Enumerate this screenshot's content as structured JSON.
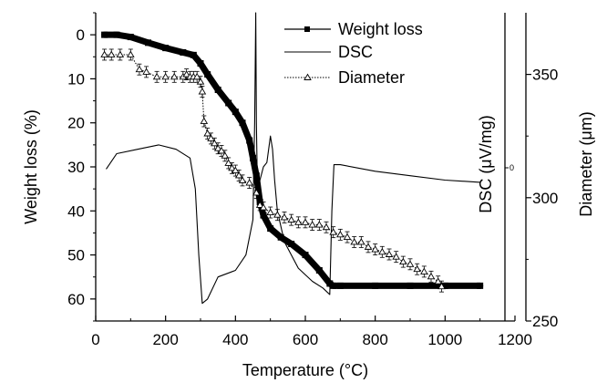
{
  "chart_data": {
    "type": "line",
    "title": "",
    "xlabel": "Temperature (°C)",
    "ylabel_left": "Weight loss (%)",
    "ylabel_dsc": "DSC (μV/mg)",
    "ylabel_right": "Diameter (μm)",
    "xlim": [
      0,
      1200
    ],
    "ylim_left": [
      65,
      -5
    ],
    "ylim_right": [
      250,
      375
    ],
    "x_ticks": [
      "0",
      "200",
      "400",
      "600",
      "800",
      "1000",
      "1200"
    ],
    "left_ticks": [
      "0",
      "10",
      "20",
      "30",
      "40",
      "50",
      "60"
    ],
    "right_ticks": [
      "250",
      "300",
      "350"
    ],
    "dsc_tick": "0",
    "legend": {
      "position": "top-right",
      "entries": [
        "Weight loss",
        "DSC",
        "Diameter"
      ]
    },
    "series": [
      {
        "name": "Weight loss",
        "axis": "left",
        "marker": "square",
        "x": [
          25,
          60,
          100,
          150,
          200,
          250,
          280,
          300,
          320,
          350,
          380,
          400,
          420,
          440,
          450,
          460,
          470,
          480,
          500,
          530,
          560,
          600,
          640,
          670,
          680,
          700,
          800,
          900,
          1000,
          1100
        ],
        "y": [
          0,
          0,
          0.5,
          1.8,
          3,
          4,
          4.6,
          6.5,
          9,
          12.5,
          15.5,
          17.5,
          20,
          24,
          28,
          32,
          38,
          41,
          44,
          46,
          47.5,
          50,
          53.5,
          56.5,
          57,
          57,
          57,
          57,
          57,
          57
        ]
      },
      {
        "name": "DSC",
        "axis": "dsc",
        "marker": "none",
        "x": [
          30,
          60,
          120,
          180,
          230,
          270,
          285,
          295,
          305,
          320,
          350,
          400,
          430,
          450,
          455,
          458,
          460,
          463,
          470,
          480,
          490,
          500,
          506,
          512,
          520,
          540,
          580,
          620,
          650,
          670,
          676,
          682,
          700,
          800,
          900,
          1000,
          1100
        ],
        "y": [
          30.5,
          27,
          26,
          25,
          26,
          28,
          35,
          50,
          61,
          60,
          55,
          53.5,
          50,
          42,
          20,
          -5,
          20,
          36,
          33,
          30,
          29,
          23,
          26,
          33,
          40,
          47,
          53,
          56,
          57.5,
          59,
          40,
          29.5,
          29.5,
          31,
          32,
          33,
          33.5
        ]
      },
      {
        "name": "Diameter",
        "axis": "right",
        "marker": "triangle",
        "x": [
          25,
          45,
          70,
          100,
          125,
          145,
          175,
          200,
          225,
          250,
          260,
          270,
          280,
          290,
          300,
          305,
          310,
          320,
          330,
          340,
          350,
          360,
          370,
          380,
          390,
          400,
          410,
          420,
          440,
          460,
          470,
          480,
          500,
          520,
          540,
          560,
          580,
          600,
          620,
          640,
          660,
          680,
          700,
          720,
          740,
          760,
          780,
          800,
          820,
          840,
          860,
          880,
          900,
          920,
          940,
          960,
          980,
          990
        ],
        "y": [
          358,
          358,
          358,
          358,
          352,
          351,
          349,
          349,
          349,
          349,
          350,
          349,
          349,
          349,
          347,
          343,
          331,
          326,
          324,
          322,
          320,
          319,
          317,
          314,
          312,
          311,
          309,
          307,
          306,
          302,
          297,
          296,
          294,
          293,
          292,
          291,
          290,
          290,
          289,
          289,
          288,
          286,
          285,
          284,
          282,
          282,
          280,
          279,
          278,
          277,
          276,
          274,
          273,
          271,
          270,
          268,
          266,
          264
        ]
      }
    ]
  }
}
